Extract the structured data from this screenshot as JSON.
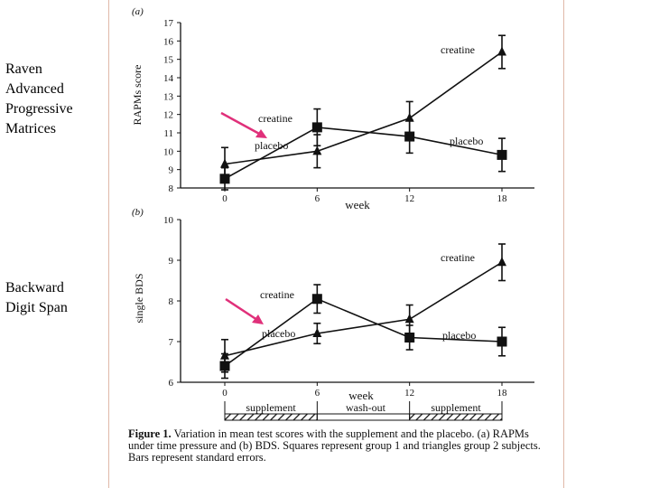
{
  "side_labels": {
    "raven": "Raven\nAdvanced\nProgressive\nMatrices",
    "bds": "Backward\nDigit Span"
  },
  "caption": {
    "title": "Figure 1.",
    "text": "Variation in mean test scores with the supplement and the placebo. (a) RAPMs under time pressure and (b) BDS. Squares represent group 1 and triangles group 2 subjects. Bars represent standard errors."
  },
  "colors": {
    "arrow": "#e0307a",
    "line": "#111111",
    "border": "#e0b8a8"
  },
  "chart_data": [
    {
      "type": "line",
      "panel_label": "(a)",
      "ylabel": "RAPMs score",
      "xlabel": "week",
      "x": [
        0,
        6,
        12,
        18
      ],
      "x_ticks": [
        "0",
        "6",
        "12",
        "18"
      ],
      "y_ticks": [
        "8",
        "9",
        "10",
        "11",
        "12",
        "13",
        "14",
        "15",
        "16",
        "17"
      ],
      "ylim": [
        8,
        17
      ],
      "series": [
        {
          "name": "group 1 (squares)",
          "marker": "square",
          "values": [
            8.5,
            11.3,
            10.8,
            9.8
          ],
          "errors": [
            0.6,
            1.0,
            0.9,
            0.9
          ]
        },
        {
          "name": "group 2 (triangles)",
          "marker": "triangle",
          "values": [
            9.3,
            10.0,
            11.8,
            15.4
          ],
          "errors": [
            0.9,
            0.9,
            0.9,
            0.9
          ]
        }
      ],
      "annotations": [
        "creatine",
        "placebo",
        "placebo",
        "creatine"
      ]
    },
    {
      "type": "line",
      "panel_label": "(b)",
      "ylabel": "single BDS",
      "xlabel": "week",
      "x": [
        0,
        6,
        12,
        18
      ],
      "x_ticks": [
        "0",
        "6",
        "12",
        "18"
      ],
      "y_ticks": [
        "6",
        "7",
        "8",
        "9",
        "10"
      ],
      "ylim": [
        6,
        10
      ],
      "series": [
        {
          "name": "group 1 (squares)",
          "marker": "square",
          "values": [
            6.4,
            8.05,
            7.1,
            7.0
          ],
          "errors": [
            0.3,
            0.35,
            0.3,
            0.35
          ]
        },
        {
          "name": "group 2 (triangles)",
          "marker": "triangle",
          "values": [
            6.65,
            7.2,
            7.55,
            8.95
          ],
          "errors": [
            0.4,
            0.25,
            0.35,
            0.45
          ]
        }
      ],
      "annotations": [
        "creatine",
        "placebo",
        "placebo",
        "creatine"
      ],
      "phase_bar": [
        "supplement",
        "wash-out",
        "supplement"
      ]
    }
  ]
}
